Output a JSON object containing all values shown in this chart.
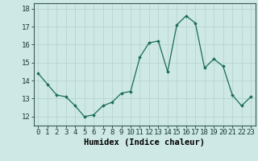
{
  "x": [
    0,
    1,
    2,
    3,
    4,
    5,
    6,
    7,
    8,
    9,
    10,
    11,
    12,
    13,
    14,
    15,
    16,
    17,
    18,
    19,
    20,
    21,
    22,
    23
  ],
  "y": [
    14.4,
    13.8,
    13.2,
    13.1,
    12.6,
    12.0,
    12.1,
    12.6,
    12.8,
    13.3,
    13.4,
    15.3,
    16.1,
    16.2,
    14.5,
    17.1,
    17.6,
    17.2,
    14.7,
    15.2,
    14.8,
    13.2,
    12.6,
    13.1
  ],
  "line_color": "#1a6b5a",
  "marker": "D",
  "marker_size": 1.8,
  "bg_color": "#cde8e5",
  "grid_color_major": "#b8d4d0",
  "grid_color_minor": "#d4e8e5",
  "xlabel": "Humidex (Indice chaleur)",
  "xlabel_fontsize": 7.5,
  "tick_fontsize": 6.5,
  "ylim": [
    11.5,
    18.3
  ],
  "xlim": [
    -0.5,
    23.5
  ],
  "yticks": [
    12,
    13,
    14,
    15,
    16,
    17,
    18
  ],
  "xtick_labels": [
    "0",
    "1",
    "2",
    "3",
    "4",
    "5",
    "6",
    "7",
    "8",
    "9",
    "10",
    "11",
    "12",
    "13",
    "14",
    "15",
    "16",
    "17",
    "18",
    "19",
    "20",
    "21",
    "22",
    "23"
  ]
}
